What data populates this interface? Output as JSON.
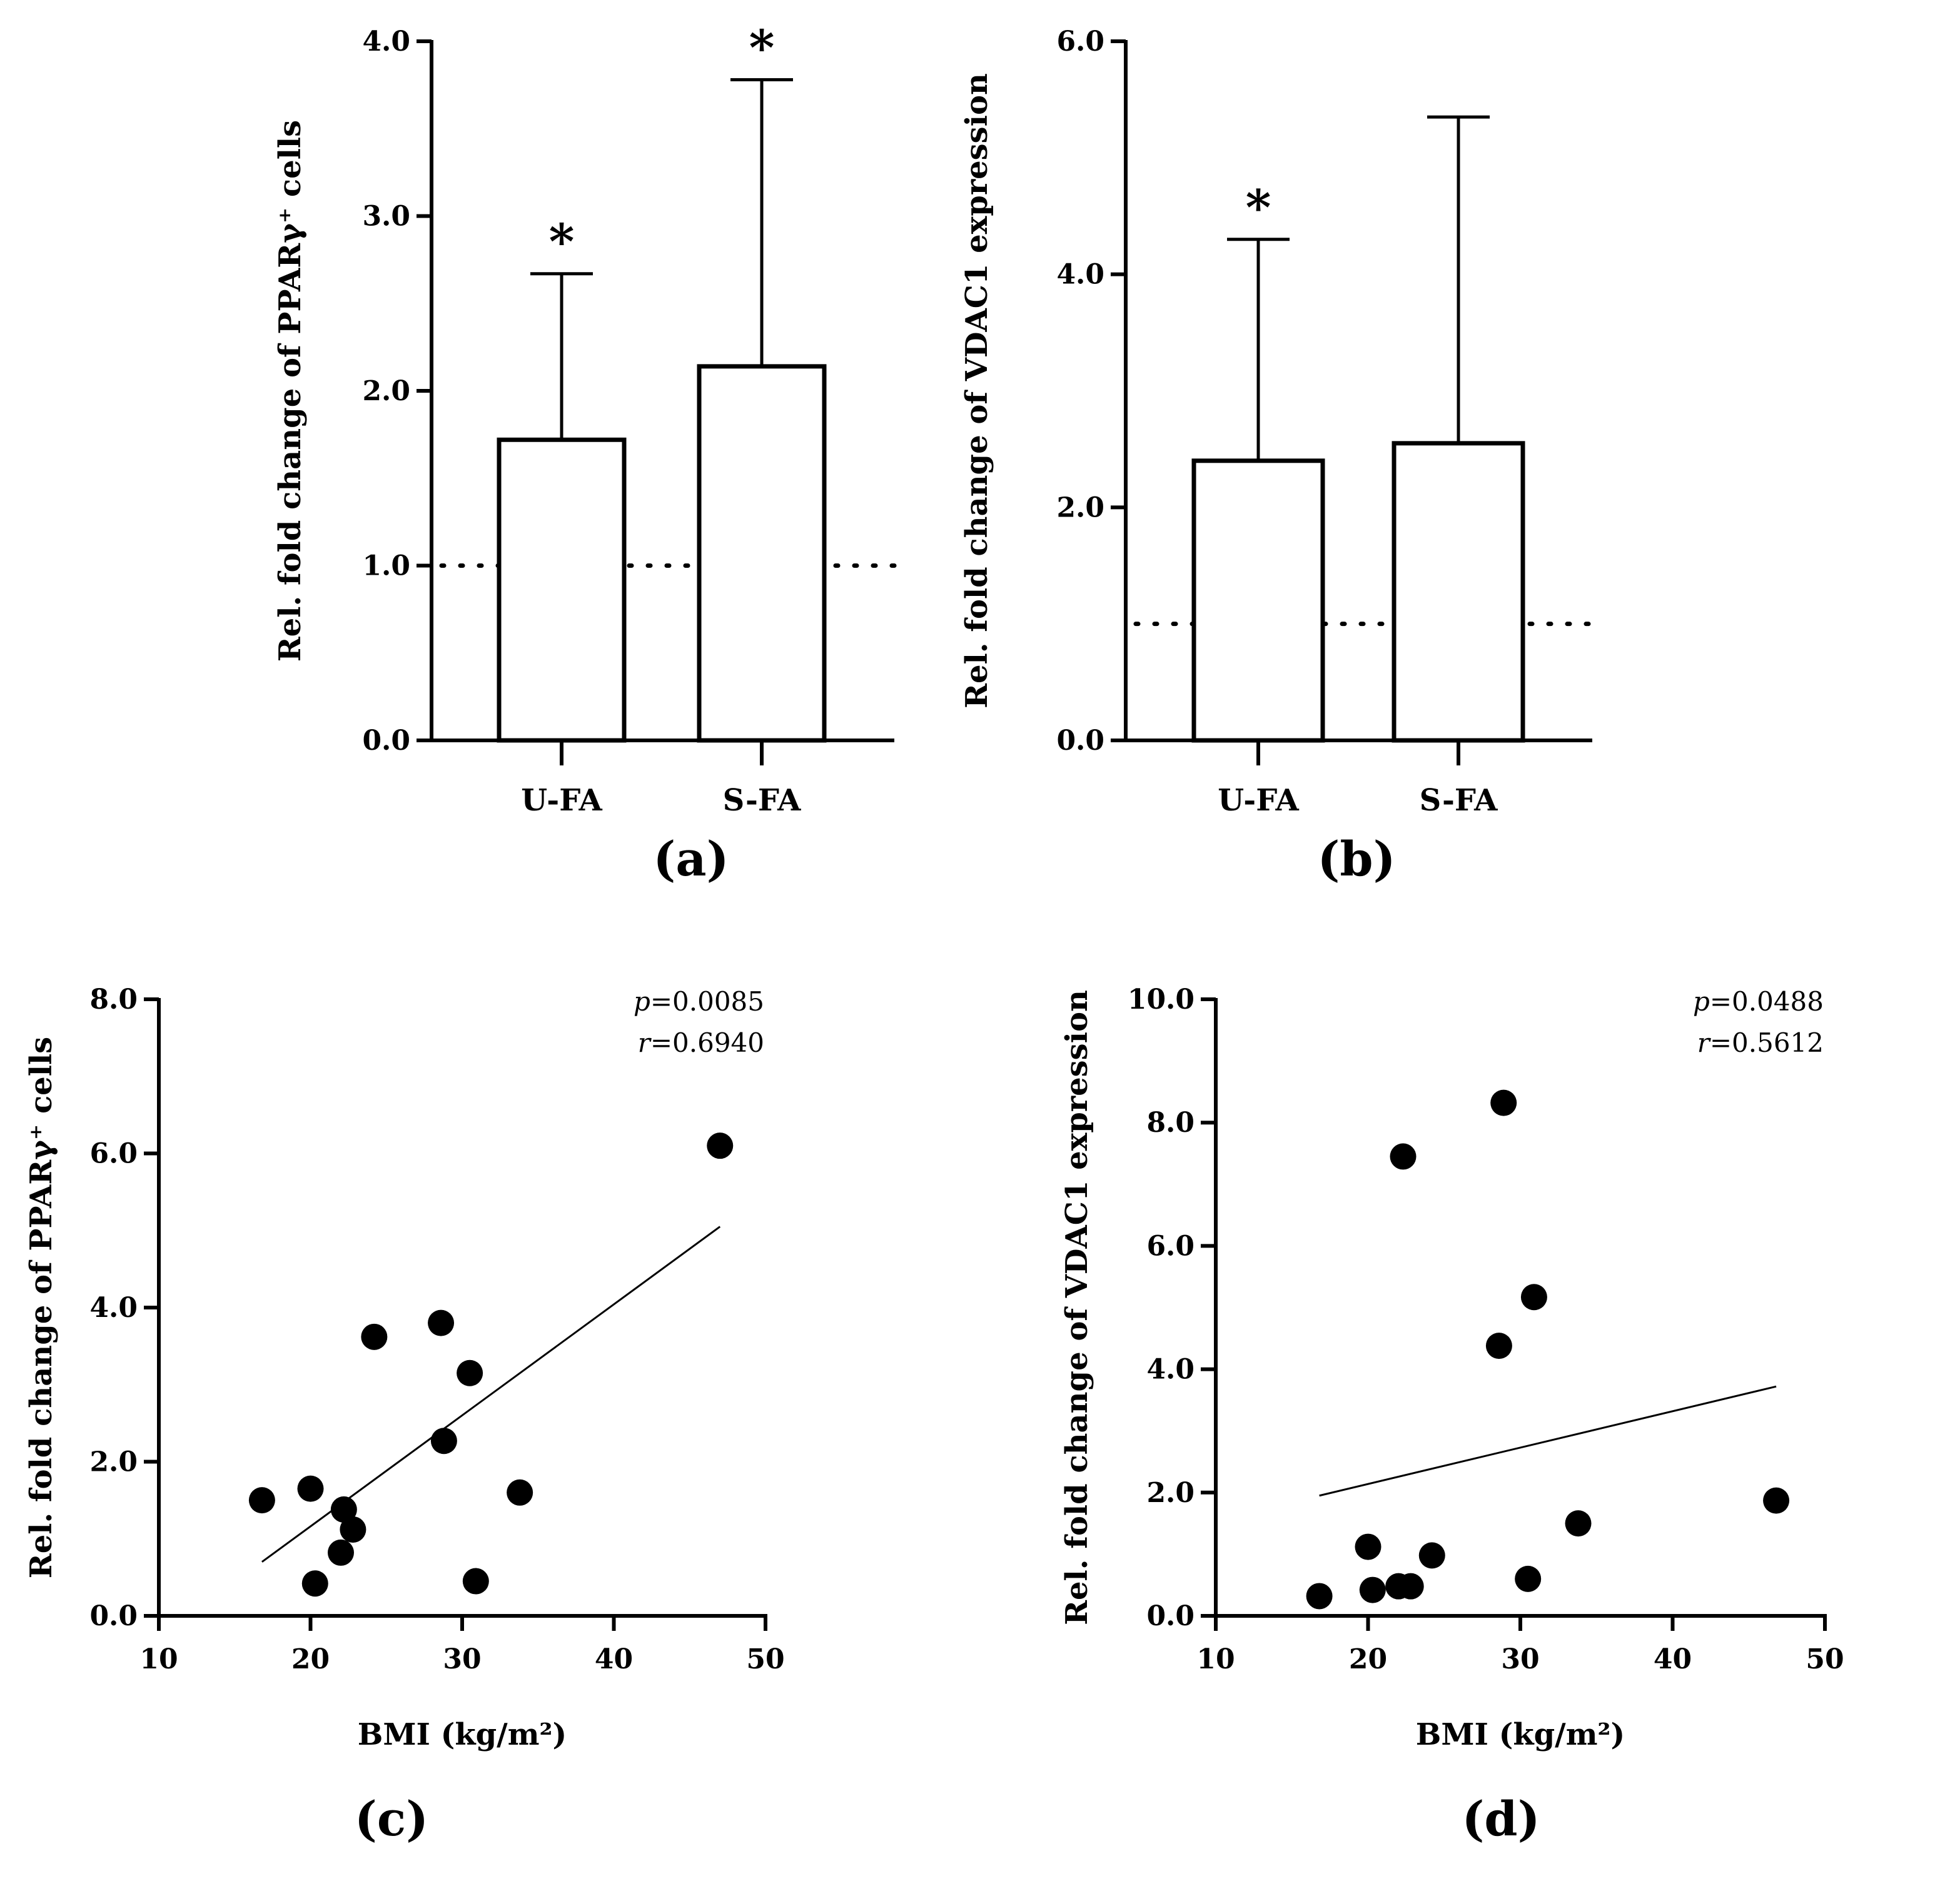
{
  "chart_data": [
    {
      "panel": "(a)",
      "type": "bar",
      "categories": [
        "U-FA",
        "S-FA"
      ],
      "values": [
        1.72,
        2.14
      ],
      "error_upper": [
        2.67,
        3.78
      ],
      "significance": [
        "*",
        "*"
      ],
      "reference_line": 1.0,
      "ylabel": "Rel. fold change of PPARγ⁺ cells",
      "ylim": [
        0,
        4
      ],
      "yticks": [
        "0.0",
        "1.0",
        "2.0",
        "3.0",
        "4.0"
      ]
    },
    {
      "panel": "(b)",
      "type": "bar",
      "categories": [
        "U-FA",
        "S-FA"
      ],
      "values": [
        2.4,
        2.55
      ],
      "error_upper": [
        4.3,
        5.35
      ],
      "significance": [
        "*",
        ""
      ],
      "reference_line": 1.0,
      "ylabel": "Rel. fold change of VDAC1 expression",
      "ylim": [
        0,
        6
      ],
      "yticks": [
        "0.0",
        "2.0",
        "4.0",
        "6.0"
      ]
    },
    {
      "panel": "(c)",
      "type": "scatter",
      "x": [
        16.8,
        20.0,
        20.3,
        22.0,
        22.2,
        22.8,
        24.2,
        28.6,
        28.8,
        30.5,
        30.9,
        33.8,
        47.0
      ],
      "y": [
        1.5,
        1.65,
        0.42,
        0.82,
        1.38,
        1.12,
        3.62,
        3.8,
        2.27,
        3.15,
        0.45,
        1.6,
        6.1
      ],
      "fit_line": {
        "x": [
          16.8,
          47.0
        ],
        "y": [
          0.7,
          5.05
        ]
      },
      "xlabel": "BMI (kg/m²)",
      "ylabel": "Rel. fold change of PPARγ⁺ cells",
      "xlim": [
        10,
        50
      ],
      "ylim": [
        0,
        8
      ],
      "xticks": [
        "10",
        "20",
        "30",
        "40",
        "50"
      ],
      "yticks": [
        "0.0",
        "2.0",
        "4.0",
        "6.0",
        "8.0"
      ],
      "stats": {
        "p_symbol": "p",
        "p_value": "=0.0085",
        "r_symbol": "r",
        "r_value": "=0.6940"
      }
    },
    {
      "panel": "(d)",
      "type": "scatter",
      "x": [
        16.8,
        20.0,
        20.3,
        22.0,
        22.3,
        22.8,
        24.2,
        28.6,
        28.9,
        30.5,
        30.9,
        33.8,
        46.8
      ],
      "y": [
        0.32,
        1.12,
        0.42,
        0.48,
        7.45,
        0.48,
        0.98,
        4.38,
        8.32,
        0.6,
        5.17,
        1.5,
        1.87
      ],
      "fit_line": {
        "x": [
          16.8,
          46.8
        ],
        "y": [
          1.95,
          3.72
        ]
      },
      "xlabel": "BMI (kg/m²)",
      "ylabel": "Rel. fold change of VDAC1 expression",
      "xlim": [
        10,
        50
      ],
      "ylim": [
        0,
        10
      ],
      "xticks": [
        "10",
        "20",
        "30",
        "40",
        "50"
      ],
      "yticks": [
        "0.0",
        "2.0",
        "4.0",
        "6.0",
        "8.0",
        "10.0"
      ],
      "stats": {
        "p_symbol": "p",
        "p_value": "=0.0488",
        "r_symbol": "r",
        "r_value": "=0.5612"
      }
    }
  ]
}
